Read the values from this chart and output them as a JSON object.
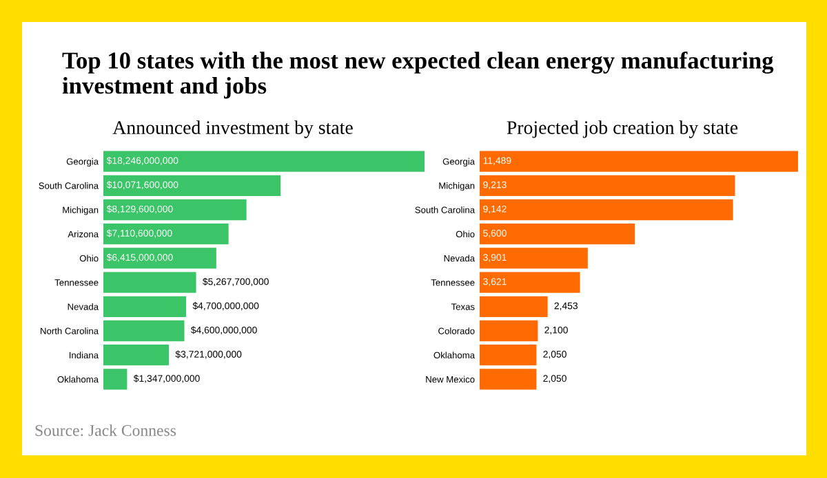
{
  "chart_data": [
    {
      "type": "bar",
      "orientation": "horizontal",
      "title": "Top 10 states with the most new expected clean energy manufacturing investment and jobs",
      "subtitle": "Announced investment by state",
      "categories": [
        "Georgia",
        "South Carolina",
        "Michigan",
        "Arizona",
        "Ohio",
        "Tennessee",
        "Nevada",
        "North Carolina",
        "Indiana",
        "Oklahoma"
      ],
      "values": [
        18246000000,
        10071600000,
        8129600000,
        7110600000,
        6415000000,
        5267700000,
        4700000000,
        4600000000,
        3721000000,
        1347000000
      ],
      "value_labels": [
        "$18,246,000,000",
        "$10,071,600,000",
        "$8,129,600,000",
        "$7,110,600,000",
        "$6,415,000,000",
        "$5,267,700,000",
        "$4,700,000,000",
        "$4,600,000,000",
        "$3,721,000,000",
        "$1,347,000,000"
      ],
      "color": "#3cc468",
      "tick_labels": "y",
      "grid": false,
      "legend": false,
      "annotations": [
        "Source: Jack Conness"
      ]
    },
    {
      "type": "bar",
      "orientation": "horizontal",
      "title": "Projected job creation by state",
      "categories": [
        "Georgia",
        "Michigan",
        "South Carolina",
        "Ohio",
        "Nevada",
        "Tennessee",
        "Texas",
        "Colorado",
        "Oklahoma",
        "New Mexico"
      ],
      "values": [
        11489,
        9213,
        9142,
        5600,
        3901,
        3621,
        2453,
        2100,
        2050,
        2050
      ],
      "value_labels": [
        "11,489",
        "9,213",
        "9,142",
        "5,600",
        "3,901",
        "3,621",
        "2,453",
        "2,100",
        "2,050",
        "2,050"
      ],
      "color": "#ff6b00",
      "tick_labels": "y",
      "grid": false,
      "legend": false
    }
  ]
}
